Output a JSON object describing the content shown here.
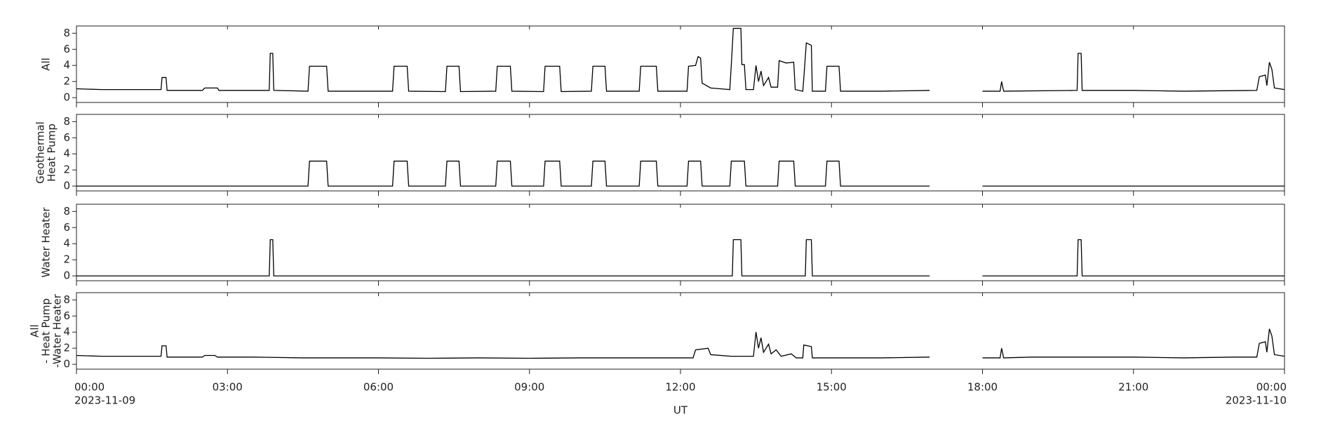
{
  "xaxis": {
    "label": "UT",
    "xlim": [
      0,
      24
    ],
    "xticks": [
      {
        "value": 0,
        "label": "00:00"
      },
      {
        "value": 3,
        "label": "03:00"
      },
      {
        "value": 6,
        "label": "06:00"
      },
      {
        "value": 9,
        "label": "09:00"
      },
      {
        "value": 12,
        "label": "12:00"
      },
      {
        "value": 15,
        "label": "15:00"
      },
      {
        "value": 18,
        "label": "18:00"
      },
      {
        "value": 21,
        "label": "21:00"
      },
      {
        "value": 24,
        "label": "00:00"
      }
    ],
    "xtick_dates": [
      {
        "value": 0,
        "label": "2023-11-09"
      },
      {
        "value": 24,
        "label": "2023-11-10"
      }
    ]
  },
  "chart_data": [
    {
      "type": "line",
      "ylabel": [
        "All"
      ],
      "ylim": [
        -0.6,
        8.9
      ],
      "yticks": [
        0,
        2,
        4,
        6,
        8
      ],
      "color": "#000000",
      "x": [
        0,
        0.5,
        1.68,
        1.7,
        1.78,
        1.8,
        2.5,
        2.55,
        2.8,
        2.83,
        3.83,
        3.85,
        3.9,
        3.92,
        4.6,
        4.63,
        4.97,
        5.0,
        6.28,
        6.31,
        6.57,
        6.6,
        7.33,
        7.36,
        7.6,
        7.63,
        8.33,
        8.36,
        8.62,
        8.65,
        9.28,
        9.31,
        9.6,
        9.63,
        10.23,
        10.26,
        10.5,
        10.53,
        11.18,
        11.21,
        11.52,
        11.55,
        12.13,
        12.16,
        12.3,
        12.35,
        12.4,
        12.43,
        12.6,
        12.98,
        13.01,
        13.05,
        13.2,
        13.22,
        13.27,
        13.3,
        13.45,
        13.5,
        13.55,
        13.6,
        13.65,
        13.75,
        13.8,
        13.93,
        13.96,
        14.1,
        14.25,
        14.28,
        14.43,
        14.45,
        14.5,
        14.6,
        14.62,
        14.88,
        14.91,
        15.15,
        15.18,
        16.0,
        16.95,
        17.5,
        18.0,
        18.35,
        18.38,
        18.42,
        19.88,
        19.9,
        19.96,
        19.98,
        21.0,
        22.0,
        23.45,
        23.5,
        23.62,
        23.65,
        23.7,
        23.75,
        23.8,
        24
      ],
      "values": [
        1.1,
        1.0,
        1.0,
        2.5,
        2.5,
        0.9,
        0.9,
        1.2,
        1.2,
        0.9,
        0.9,
        5.5,
        5.5,
        0.9,
        0.8,
        3.9,
        3.9,
        0.8,
        0.8,
        3.9,
        3.9,
        0.8,
        0.75,
        3.9,
        3.9,
        0.75,
        0.8,
        3.9,
        3.9,
        0.8,
        0.75,
        3.9,
        3.9,
        0.75,
        0.8,
        3.9,
        3.9,
        0.8,
        0.8,
        3.9,
        3.9,
        0.8,
        0.8,
        3.9,
        4.0,
        5.1,
        4.9,
        1.8,
        1.2,
        1.0,
        4.1,
        8.6,
        8.6,
        4.1,
        4.1,
        1.0,
        1.0,
        4.0,
        2.0,
        3.3,
        1.5,
        2.5,
        1.3,
        1.3,
        4.6,
        4.3,
        4.4,
        1.0,
        0.8,
        2.4,
        6.8,
        6.5,
        0.8,
        0.8,
        3.9,
        3.9,
        0.8,
        0.8,
        0.9,
        null,
        0.8,
        0.8,
        2.0,
        0.8,
        0.9,
        5.5,
        5.5,
        0.9,
        0.9,
        0.8,
        0.9,
        2.6,
        2.8,
        1.5,
        4.4,
        3.5,
        1.2,
        1.0
      ]
    },
    {
      "type": "line",
      "ylabel": [
        "Geothermal",
        "Heat Pump"
      ],
      "ylim": [
        -0.6,
        8.9
      ],
      "yticks": [
        0,
        2,
        4,
        6,
        8
      ],
      "color": "#000000",
      "x": [
        0,
        4.6,
        4.63,
        4.97,
        5.0,
        6.28,
        6.31,
        6.57,
        6.6,
        7.33,
        7.36,
        7.6,
        7.63,
        8.33,
        8.36,
        8.62,
        8.65,
        9.28,
        9.31,
        9.6,
        9.63,
        10.23,
        10.26,
        10.5,
        10.53,
        11.18,
        11.21,
        11.52,
        11.55,
        12.13,
        12.16,
        12.4,
        12.43,
        12.98,
        13.01,
        13.27,
        13.3,
        13.93,
        13.96,
        14.25,
        14.28,
        14.88,
        14.91,
        15.15,
        15.18,
        16.95,
        17.5,
        18.0,
        24
      ],
      "values": [
        0,
        0,
        3.1,
        3.1,
        0,
        0,
        3.1,
        3.1,
        0,
        0,
        3.1,
        3.1,
        0,
        0,
        3.1,
        3.1,
        0,
        0,
        3.1,
        3.1,
        0,
        0,
        3.1,
        3.1,
        0,
        0,
        3.1,
        3.1,
        0,
        0,
        3.1,
        3.1,
        0,
        0,
        3.1,
        3.1,
        0,
        0,
        3.1,
        3.1,
        0,
        0,
        3.1,
        3.1,
        0,
        0,
        null,
        0,
        0
      ]
    },
    {
      "type": "line",
      "ylabel": [
        "Water Heater"
      ],
      "ylim": [
        -0.6,
        8.9
      ],
      "yticks": [
        0,
        2,
        4,
        6,
        8
      ],
      "color": "#000000",
      "x": [
        0,
        3.83,
        3.85,
        3.9,
        3.92,
        13.03,
        13.05,
        13.2,
        13.22,
        14.48,
        14.5,
        14.6,
        14.62,
        16.95,
        17.5,
        18.0,
        19.88,
        19.9,
        19.96,
        19.98,
        24
      ],
      "values": [
        0,
        0,
        4.5,
        4.5,
        0,
        0,
        4.5,
        4.5,
        0,
        0,
        4.5,
        4.5,
        0,
        0,
        null,
        0,
        0,
        4.5,
        4.5,
        0,
        0
      ]
    },
    {
      "type": "line",
      "ylabel": [
        "All",
        "- Heat Pump",
        "-Water Heater"
      ],
      "ylim": [
        -0.6,
        8.9
      ],
      "yticks": [
        0,
        2,
        4,
        6,
        8
      ],
      "color": "#000000",
      "x": [
        0,
        0.5,
        1.0,
        1.68,
        1.7,
        1.78,
        1.8,
        2.5,
        2.55,
        2.75,
        2.8,
        3.5,
        4.5,
        6.0,
        7.0,
        8.0,
        9.0,
        10.0,
        11.0,
        12.25,
        12.3,
        12.55,
        12.6,
        13.0,
        13.45,
        13.5,
        13.55,
        13.6,
        13.65,
        13.75,
        13.8,
        13.9,
        14.0,
        14.2,
        14.3,
        14.43,
        14.45,
        14.6,
        14.62,
        15.5,
        16.0,
        16.95,
        17.5,
        18.0,
        18.35,
        18.38,
        18.42,
        19.0,
        20.0,
        21.0,
        22.0,
        23.0,
        23.45,
        23.5,
        23.62,
        23.65,
        23.7,
        23.75,
        23.8,
        24
      ],
      "values": [
        1.1,
        1.0,
        1.0,
        1.0,
        2.3,
        2.3,
        0.9,
        0.9,
        1.1,
        1.1,
        0.9,
        0.9,
        0.8,
        0.8,
        0.75,
        0.8,
        0.75,
        0.8,
        0.8,
        0.8,
        1.8,
        2.0,
        1.2,
        1.0,
        1.0,
        4.0,
        2.0,
        3.3,
        1.5,
        2.5,
        1.3,
        1.8,
        1.0,
        1.3,
        0.8,
        0.8,
        2.4,
        2.2,
        0.8,
        0.8,
        0.8,
        0.9,
        null,
        0.8,
        0.8,
        2.0,
        0.8,
        0.9,
        0.9,
        0.9,
        0.8,
        0.9,
        0.9,
        2.6,
        2.8,
        1.5,
        4.4,
        3.5,
        1.2,
        1.0
      ]
    }
  ]
}
